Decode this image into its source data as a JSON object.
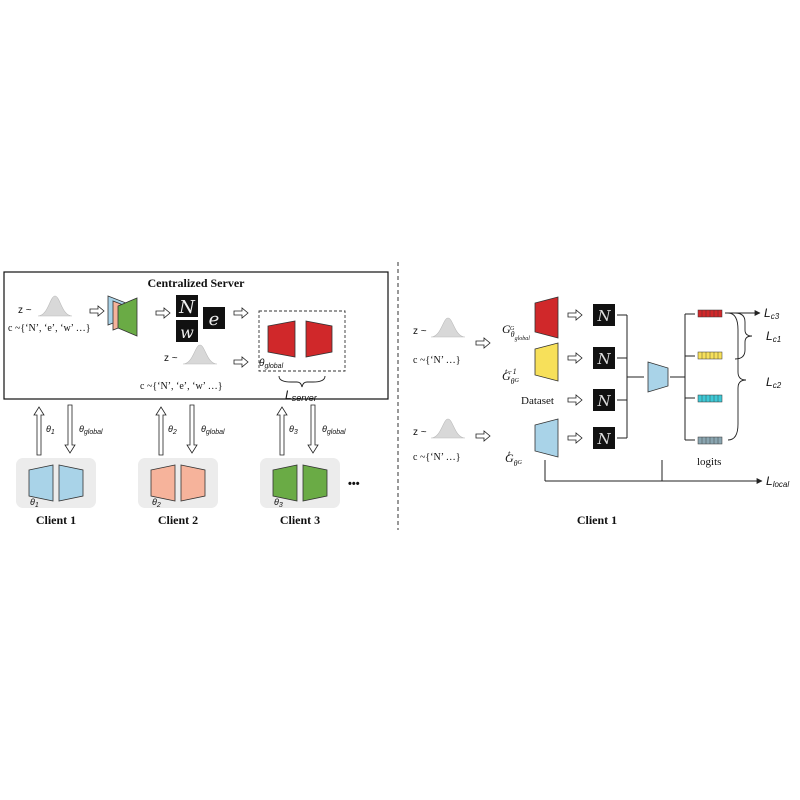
{
  "server": {
    "title": "Centralized Server",
    "noise_label": "z ~",
    "cond_label": "c ~{‘N’, ‘e’, ‘w’ …}",
    "noise_label_2": "z ~",
    "cond_label_2": "c ~{‘N’, ‘e’, ‘w’ …}",
    "theta_global": "θglobal",
    "loss_label": "Lserver"
  },
  "clients": [
    {
      "name": "Client 1",
      "param": "θ1",
      "up": "θ1",
      "down": "θglobal",
      "color": "#a9d3e8"
    },
    {
      "name": "Client 2",
      "param": "θ2",
      "up": "θ2",
      "down": "θglobal",
      "color": "#f6b39b"
    },
    {
      "name": "Client 3",
      "param": "θ3",
      "up": "θ3",
      "down": "θglobal",
      "color": "#6aab45"
    }
  ],
  "ellipsis": "•••",
  "detail": {
    "client_title": "Client 1",
    "noise_label": "z ~",
    "cond_label": "c ~{‘N’ …}",
    "noise_label_2": "z ~",
    "cond_label_2": "c ~{‘N’ …}",
    "dataset_label": "Dataset",
    "gen_global": "G",
    "gen_prev": "G",
    "gen_cur": "G",
    "logits_label": "logits",
    "losses": [
      "Lc3",
      "Lc1",
      "Lc2",
      "Llocal"
    ]
  },
  "colors": {
    "red": "#d0282a",
    "yellow": "#f7e05a",
    "blue": "#a9d3e8",
    "salmon": "#f6b39b",
    "green": "#6aab45",
    "teal": "#3ec9d6",
    "gray": "#8aa5b0",
    "client_bg": "#ececec"
  }
}
